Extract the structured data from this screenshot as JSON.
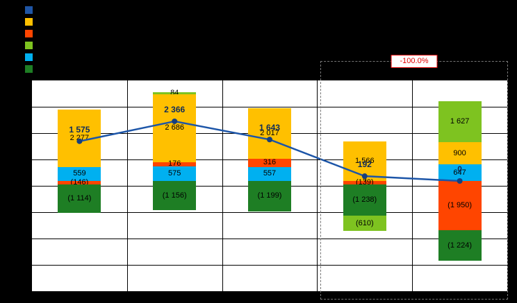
{
  "annotation": {
    "change_label": "-100.0%"
  },
  "legend": {
    "items": [
      {
        "name": "line-series",
        "color": "#1f55a5",
        "label": ""
      },
      {
        "name": "yellow-series",
        "color": "#ffc000",
        "label": ""
      },
      {
        "name": "orange-series",
        "color": "#ff4500",
        "label": ""
      },
      {
        "name": "lightgreen-series",
        "color": "#7ec320",
        "label": ""
      },
      {
        "name": "cyan-series",
        "color": "#00b0f0",
        "label": ""
      },
      {
        "name": "darkgreen-series",
        "color": "#1e7e24",
        "label": ""
      }
    ]
  },
  "chart_data": {
    "type": "combo-stacked-bar-line",
    "title": "",
    "categories": [
      "",
      "",
      "",
      "",
      ""
    ],
    "ylim": [
      -4000,
      4000
    ],
    "gridline_step": 1000,
    "grid_rows": 8,
    "series_colors": {
      "yellow": "#ffc000",
      "orange": "#ff4500",
      "cyan": "#00b0f0",
      "lightgreen": "#7ec320",
      "darkgreen": "#1e7e24"
    },
    "columns": [
      {
        "positives": [
          {
            "series": "yellow",
            "value": 2277
          },
          {
            "series": "cyan",
            "value": 559
          }
        ],
        "negatives": [
          {
            "series": "orange",
            "value": -146
          },
          {
            "series": "darkgreen",
            "value": -1114
          }
        ]
      },
      {
        "positives": [
          {
            "series": "lightgreen",
            "value": 84
          },
          {
            "series": "yellow",
            "value": 2686
          },
          {
            "series": "orange",
            "value": 176
          },
          {
            "series": "cyan",
            "value": 575
          }
        ],
        "negatives": [
          {
            "series": "darkgreen",
            "value": -1156
          }
        ]
      },
      {
        "positives": [
          {
            "series": "yellow",
            "value": 2017
          },
          {
            "series": "orange",
            "value": 316
          },
          {
            "series": "cyan",
            "value": 557
          }
        ],
        "negatives": [
          {
            "series": "darkgreen",
            "value": -1199
          }
        ]
      },
      {
        "positives": [
          {
            "series": "yellow",
            "value": 1566
          },
          {
            "series": "cyan",
            "value": 2
          }
        ],
        "negatives": [
          {
            "series": "orange",
            "value": -139
          },
          {
            "series": "darkgreen",
            "value": -1238
          },
          {
            "series": "lightgreen",
            "value": -610
          }
        ]
      },
      {
        "positives": [
          {
            "series": "lightgreen",
            "value": 1627
          },
          {
            "series": "yellow",
            "value": 900
          },
          {
            "series": "cyan",
            "value": 647
          }
        ],
        "negatives": [
          {
            "series": "orange",
            "value": -1950
          },
          {
            "series": "darkgreen",
            "value": -1224
          }
        ]
      }
    ],
    "line": {
      "name": "line-series",
      "values": [
        1575,
        2366,
        1643,
        192,
        0
      ],
      "color": "#1c55a8",
      "marker_color": "#163f7e"
    }
  }
}
